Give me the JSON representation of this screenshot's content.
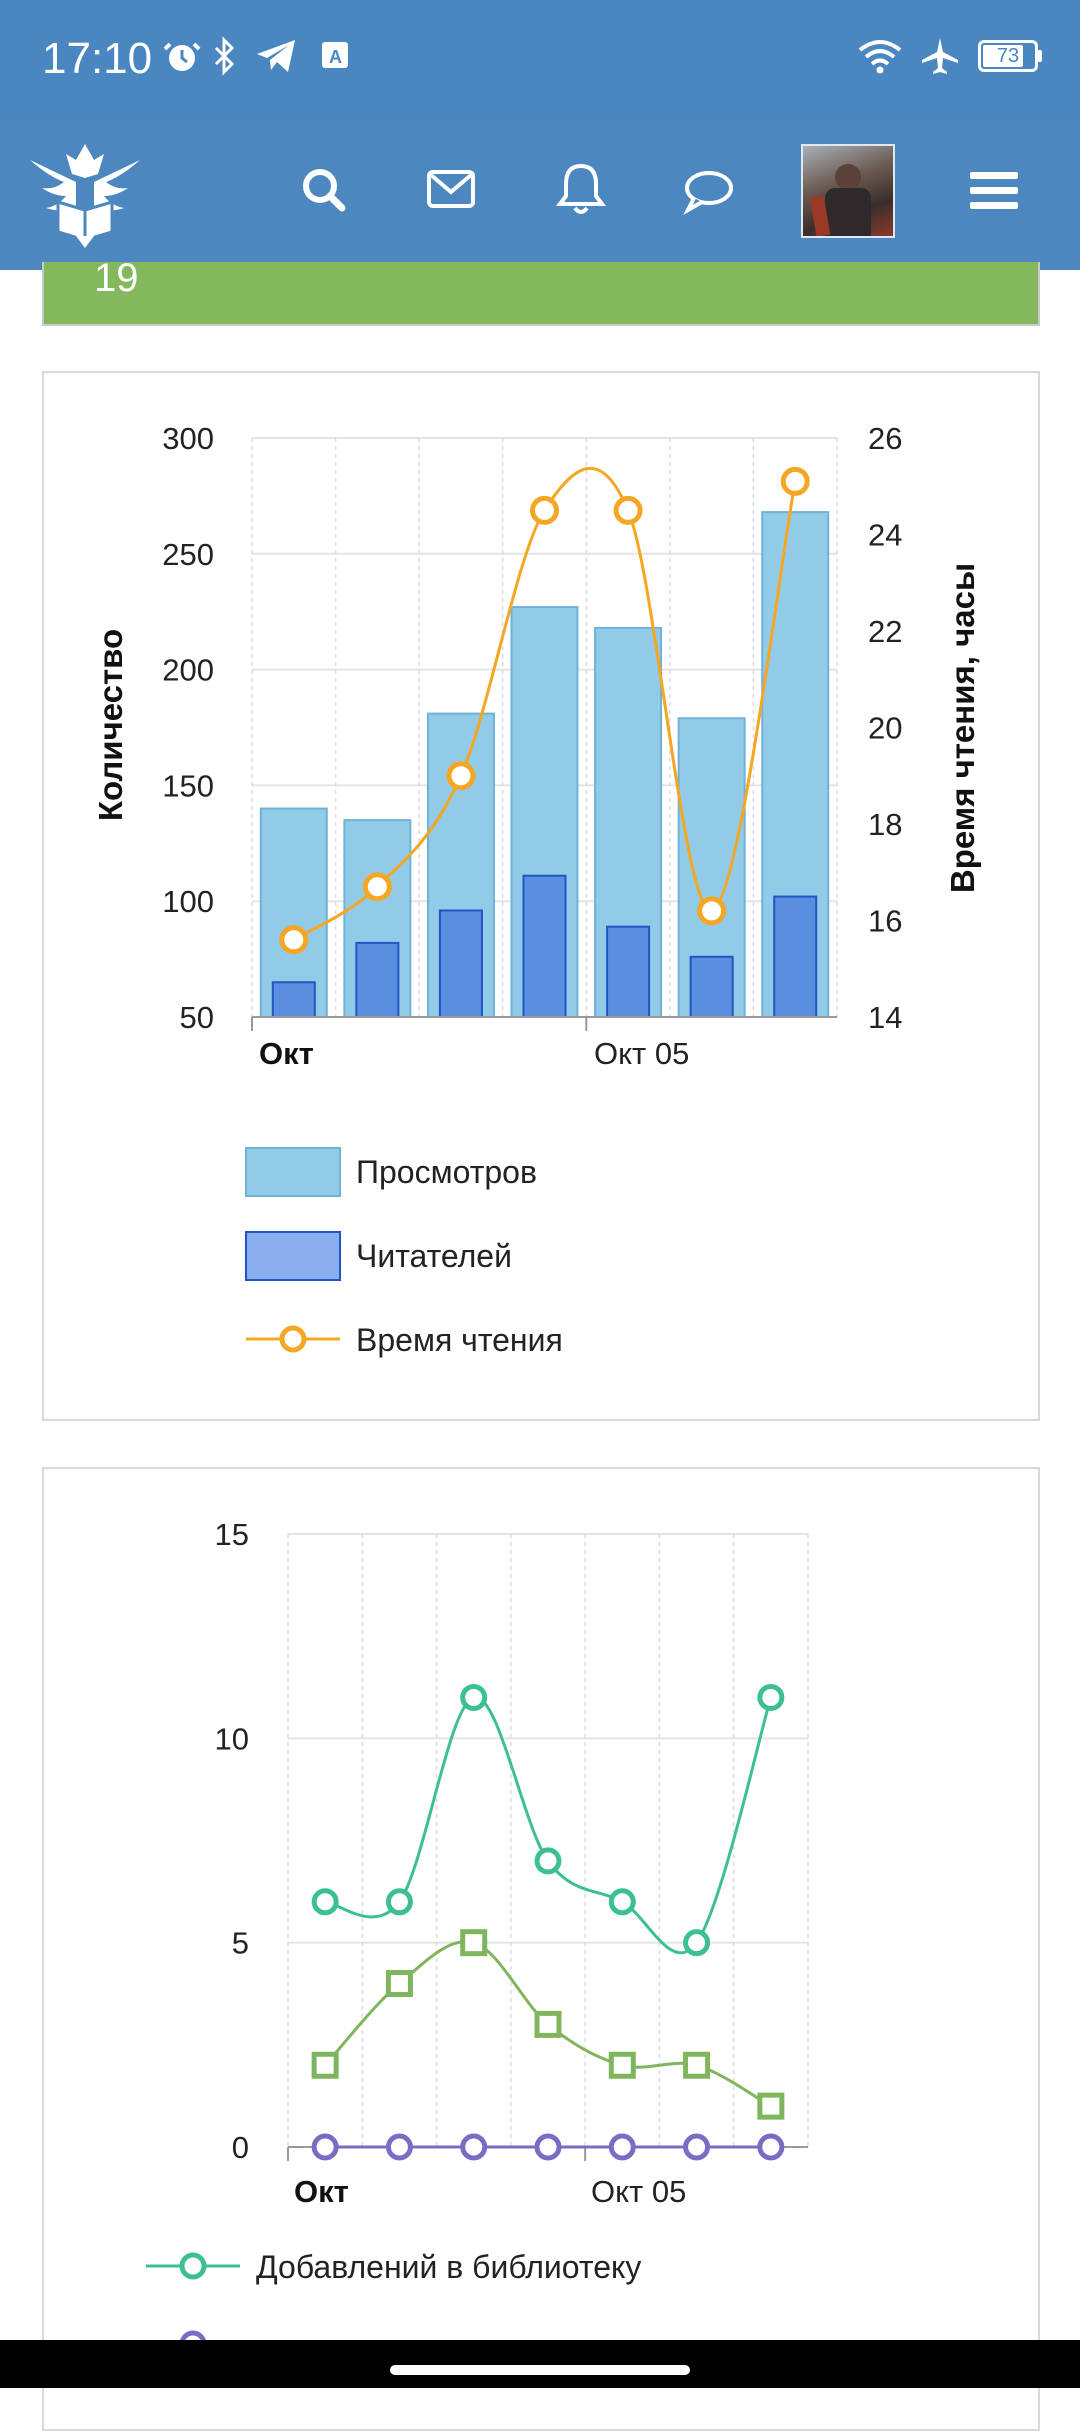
{
  "status_bar": {
    "time": "17:10",
    "battery": "73",
    "icons": [
      "alarm-icon",
      "bluetooth-icon",
      "telegram-icon",
      "translate-icon",
      "wifi-icon",
      "airplane-icon",
      "battery-icon"
    ]
  },
  "nav": {
    "icons": [
      "logo-eagle-book-icon",
      "search-icon",
      "mail-icon",
      "bell-icon",
      "chat-icon",
      "avatar",
      "menu-icon"
    ]
  },
  "green_strip": {
    "text": "19"
  },
  "colors": {
    "header": "#4a87c0",
    "views_bar": "#92cbe8",
    "readers_bar": "#5a8fe0",
    "reading_time": "#f5a623",
    "library": "#3dbf96",
    "green_series": "#7fb65d",
    "purple_series": "#7a6cc4"
  },
  "chart_data": [
    {
      "type": "bar",
      "categories": [
        "1",
        "2",
        "3",
        "4",
        "5",
        "6",
        "7"
      ],
      "x_tick_labels": [
        "Окт",
        "Окт 05"
      ],
      "ylabel": "Количество",
      "y2label": "Время чтения, часы",
      "ylim": [
        50,
        300
      ],
      "y_ticks": [
        "300",
        "250",
        "200",
        "150",
        "100",
        "50"
      ],
      "y2lim": [
        14,
        26
      ],
      "y2_ticks": [
        "26",
        "24",
        "22",
        "20",
        "18",
        "16",
        "14"
      ],
      "grid": true,
      "series": [
        {
          "name": "Просмотров",
          "type": "bar",
          "values": [
            140,
            135,
            181,
            227,
            218,
            179,
            268
          ]
        },
        {
          "name": "Читателей",
          "type": "bar",
          "values": [
            65,
            82,
            96,
            111,
            89,
            76,
            102
          ]
        },
        {
          "name": "Время чтения",
          "type": "line",
          "axis": "right",
          "values": [
            15.6,
            16.7,
            19.0,
            24.5,
            24.5,
            16.2,
            25.1
          ]
        }
      ],
      "legend": [
        "Просмотров",
        "Читателей",
        "Время чтения"
      ],
      "legend_position": "bottom"
    },
    {
      "type": "line",
      "categories": [
        "1",
        "2",
        "3",
        "4",
        "5",
        "6",
        "7"
      ],
      "x_tick_labels": [
        "Окт",
        "Окт 05"
      ],
      "ylim": [
        0,
        15
      ],
      "y_ticks": [
        "15",
        "10",
        "5",
        "0"
      ],
      "grid": true,
      "series": [
        {
          "name": "Добавлений в библиотеку",
          "values": [
            6,
            6,
            11,
            7,
            6,
            5,
            11
          ]
        },
        {
          "values": [
            2,
            4,
            5,
            3,
            2,
            2,
            1
          ]
        },
        {
          "values": [
            0,
            0,
            0,
            0,
            0,
            0,
            0
          ]
        }
      ],
      "legend": [
        "Добавлений в библиотеку"
      ],
      "legend_position": "bottom"
    }
  ]
}
